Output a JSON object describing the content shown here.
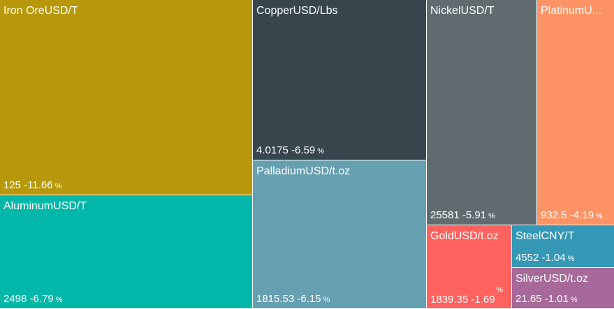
{
  "tiles": {
    "iron_ore": {
      "name": "Iron Ore",
      "unit": "USD/T",
      "price": "125",
      "change": "-11.66",
      "pct_sign": "%",
      "color": "#b8980a",
      "text_color": "#ffffff"
    },
    "copper": {
      "name": "Copper",
      "unit": "USD/Lbs",
      "price": "4.0175",
      "change": "-6.59",
      "pct_sign": "%",
      "color": "#37454d",
      "text_color": "#ffffff"
    },
    "nickel": {
      "name": "Nickel",
      "unit": "USD/T",
      "price": "25581",
      "change": "-5.91",
      "pct_sign": "%",
      "color": "#5f6b6e",
      "text_color": "#ffffff"
    },
    "platinum": {
      "name": "PlatinumU...",
      "unit": "",
      "price": "932.5",
      "change": "-4.19",
      "pct_sign": "%",
      "color": "#fe9466",
      "text_color": "#ffffff"
    },
    "aluminum": {
      "name": "Aluminum",
      "unit": "USD/T",
      "price": "2498",
      "change": "-6.79",
      "pct_sign": "%",
      "color": "#00b7a9",
      "text_color": "#ffffff"
    },
    "palladium": {
      "name": "Palladium",
      "unit": "USD/t.oz",
      "price": "1815.53",
      "change": "-6.15",
      "pct_sign": "%",
      "color": "#669fb0",
      "text_color": "#ffffff"
    },
    "gold": {
      "name": "Gold",
      "unit": "USD/t.oz",
      "price": "1839.35",
      "change": "-1.69",
      "pct_sign": "%",
      "color": "#fd625e",
      "text_color": "#ffffff"
    },
    "steel": {
      "name": "Steel",
      "unit": "CNY/T",
      "price": "4552",
      "change": "-1.04",
      "pct_sign": "%",
      "color": "#3598b6",
      "text_color": "#ffffff"
    },
    "silver": {
      "name": "Silver",
      "unit": "USD/t.oz",
      "price": "21.65",
      "change": "-1.01",
      "pct_sign": "%",
      "color": "#a66999",
      "text_color": "#ffffff"
    }
  }
}
